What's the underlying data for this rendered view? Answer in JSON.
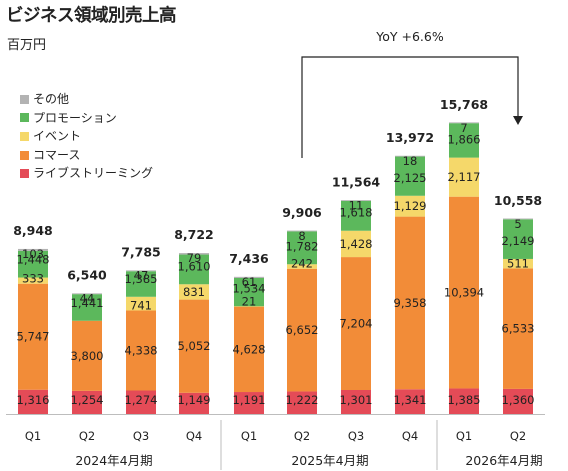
{
  "title": "ビジネス領域別売上高",
  "unit": "百万円",
  "legend": [
    {
      "label": "その他",
      "color": "#b3b3b3"
    },
    {
      "label": "プロモーション",
      "color": "#5cb85c"
    },
    {
      "label": "イベント",
      "color": "#f5d86a"
    },
    {
      "label": "コマース",
      "color": "#f28c38"
    },
    {
      "label": "ライブストリーミング",
      "color": "#e44b57"
    }
  ],
  "chart_data": {
    "type": "bar",
    "stacked": true,
    "categories": [
      "Q1",
      "Q2",
      "Q3",
      "Q4",
      "Q1",
      "Q2",
      "Q3",
      "Q4",
      "Q1",
      "Q2"
    ],
    "groups": [
      {
        "label": "2024年4月期",
        "categories": [
          "Q1",
          "Q2",
          "Q3",
          "Q4"
        ]
      },
      {
        "label": "2025年4月期",
        "categories": [
          "Q1",
          "Q2",
          "Q3",
          "Q4"
        ]
      },
      {
        "label": "2026年4月期",
        "categories": [
          "Q1",
          "Q2"
        ]
      }
    ],
    "series": [
      {
        "name": "ライブストリーミング",
        "color": "#e44b57",
        "values": [
          1316,
          1254,
          1274,
          1149,
          1191,
          1222,
          1301,
          1341,
          1385,
          1360
        ]
      },
      {
        "name": "コマース",
        "color": "#f28c38",
        "values": [
          5747,
          3800,
          4338,
          5052,
          4628,
          6652,
          7204,
          9358,
          10394,
          6533
        ]
      },
      {
        "name": "イベント",
        "color": "#f5d86a",
        "values": [
          333,
          null,
          741,
          831,
          21,
          242,
          1428,
          1129,
          2117,
          511
        ]
      },
      {
        "name": "プロモーション",
        "color": "#5cb85c",
        "values": [
          1448,
          1441,
          1385,
          1610,
          1534,
          1782,
          1618,
          2125,
          1866,
          2149
        ]
      },
      {
        "name": "その他",
        "color": "#b3b3b3",
        "values": [
          103,
          44,
          47,
          79,
          61,
          8,
          11,
          18,
          7,
          5
        ]
      }
    ],
    "totals": [
      "8,948",
      "6,540",
      "7,785",
      "8,722",
      "7,436",
      "9,906",
      "11,564",
      "13,972",
      "15,768",
      "10,558"
    ],
    "annotation": "YoY +6.6%",
    "ylim": [
      0,
      16000
    ]
  }
}
